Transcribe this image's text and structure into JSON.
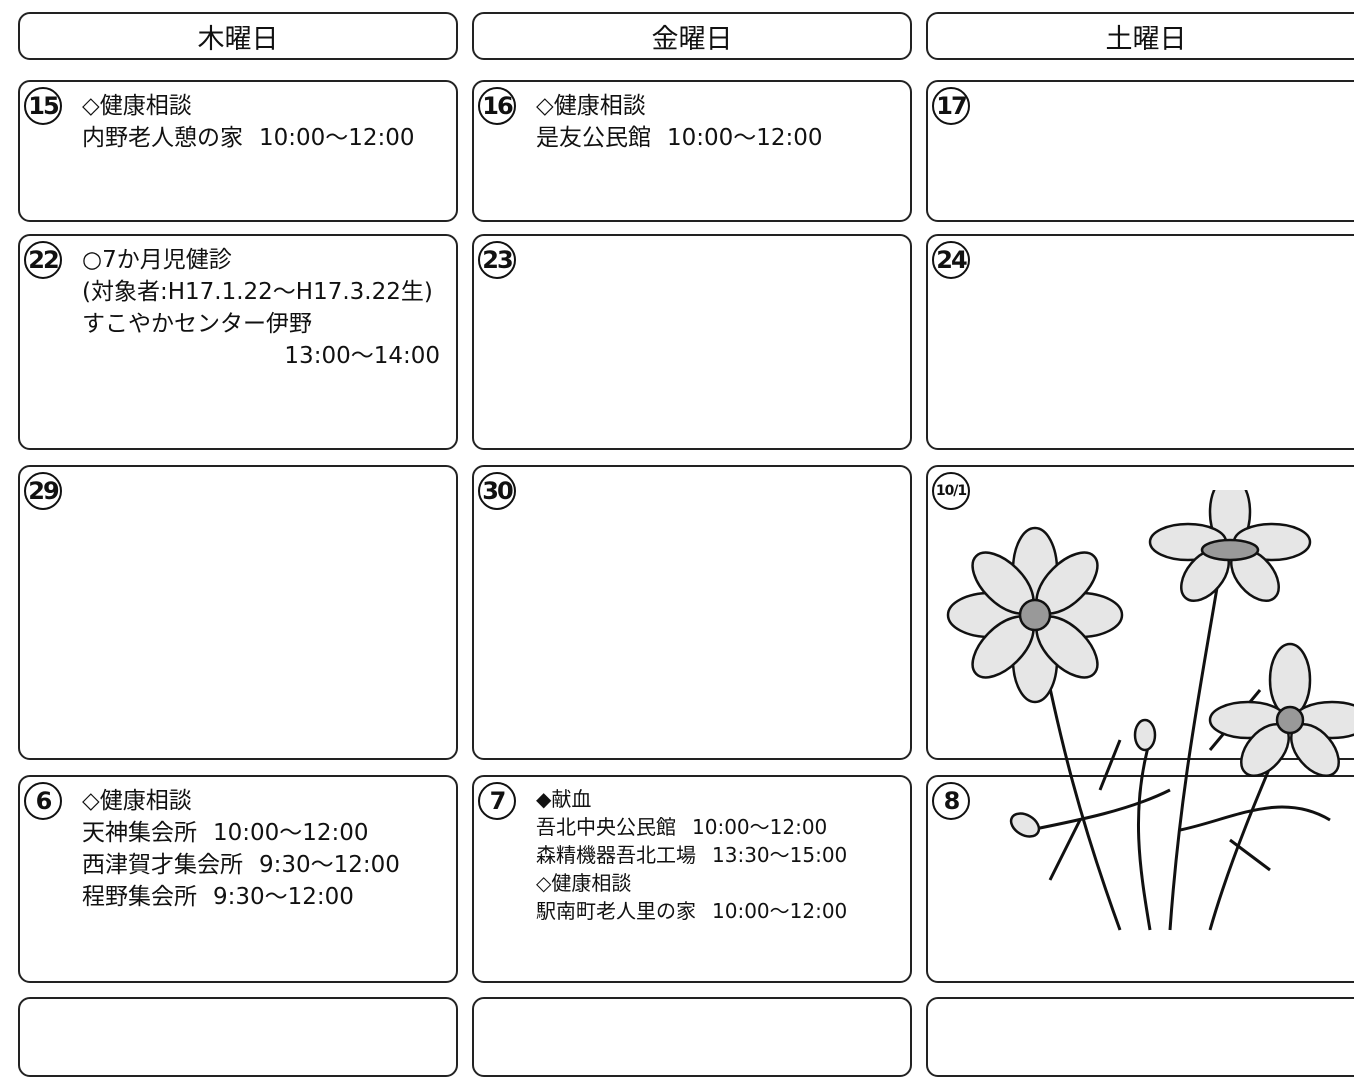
{
  "header": {
    "days": [
      "木曜日",
      "金曜日",
      "土曜日"
    ]
  },
  "rows": [
    [
      {
        "day": "15",
        "lines": [
          "◇健康相談",
          {
            "place": "内野老人憩の家",
            "time": "10:00～12:00"
          }
        ]
      },
      {
        "day": "16",
        "lines": [
          "◇健康相談",
          {
            "place": "是友公民館",
            "time": "10:00～12:00"
          }
        ]
      },
      {
        "day": "17",
        "lines": []
      }
    ],
    [
      {
        "day": "22",
        "lines": [
          "○7か月児健診",
          "(対象者:H17.1.22～H17.3.22生)",
          "すこやかセンター伊野",
          {
            "time": "13:00～14:00"
          }
        ]
      },
      {
        "day": "23",
        "lines": []
      },
      {
        "day": "24",
        "lines": []
      }
    ],
    [
      {
        "day": "29",
        "lines": []
      },
      {
        "day": "30",
        "lines": []
      },
      {
        "day": "10/1",
        "lines": []
      }
    ],
    [
      {
        "day": "6",
        "lines": [
          "◇健康相談",
          {
            "place": "天神集会所",
            "time": "10:00～12:00"
          },
          {
            "place": "西津賀才集会所",
            "time": "9:30～12:00"
          },
          {
            "place": "程野集会所",
            "time": "9:30～12:00"
          }
        ]
      },
      {
        "day": "7",
        "lines": [
          "◆献血",
          {
            "place": "吾北中央公民館",
            "time": "10:00～12:00"
          },
          {
            "place": "森精機器吾北工場",
            "time": "13:30～15:00"
          },
          "◇健康相談",
          {
            "place": "駅南町老人里の家",
            "time": "10:00～12:00"
          }
        ]
      },
      {
        "day": "8",
        "lines": []
      }
    ],
    [
      {
        "lines": []
      },
      {
        "lines": []
      },
      {
        "lines": []
      }
    ]
  ]
}
